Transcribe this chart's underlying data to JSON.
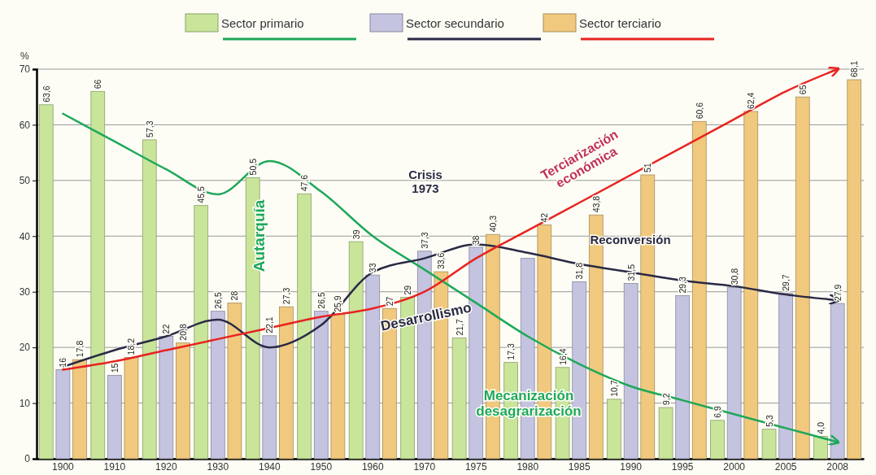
{
  "chart_data": {
    "type": "bar",
    "ylabel": "%",
    "categories": [
      "1900",
      "1910",
      "1920",
      "1930",
      "1940",
      "1950",
      "1960",
      "1970",
      "1975",
      "1980",
      "1985",
      "1990",
      "1995",
      "2000",
      "2005",
      "2008"
    ],
    "ylim": [
      0,
      70
    ],
    "yticks": [
      0,
      10,
      20,
      30,
      40,
      50,
      60,
      70
    ],
    "grid": "y",
    "legend": "top",
    "series": [
      {
        "name": "Sector primario",
        "color": "#c8e59a",
        "values": [
          63.6,
          66,
          57.3,
          45.5,
          50.5,
          47.6,
          39,
          29,
          21.7,
          17.3,
          16.4,
          10.7,
          9.2,
          6.9,
          5.3,
          4.0
        ],
        "value_labels": [
          "63,6",
          "66",
          "57,3",
          "45,5",
          "50,5",
          "47,6",
          "39",
          "29",
          "21,7",
          "17,3",
          "16,4",
          "10,7",
          "9,2",
          "6,9",
          "5,3",
          "4,0"
        ]
      },
      {
        "name": "Sector secundario",
        "color": "#c4c4e0",
        "values": [
          16,
          15,
          22,
          26.5,
          22.1,
          26.5,
          33,
          37.3,
          38,
          36,
          31.8,
          31.5,
          29.3,
          30.8,
          29.7,
          27.9
        ],
        "value_labels": [
          "16",
          "15",
          "22",
          "26,5",
          "22,1",
          "26,5",
          "33",
          "37,3",
          "38",
          null,
          "31,8",
          "31,5",
          "29,3",
          "30,8",
          "29,7",
          "27,9"
        ]
      },
      {
        "name": "Sector terciario",
        "color": "#f0c97e",
        "values": [
          17.8,
          18.2,
          20.8,
          28,
          27.3,
          25.9,
          27,
          33.6,
          40.3,
          42,
          43.8,
          51,
          60.6,
          62.4,
          65,
          68.1
        ],
        "value_labels": [
          "17,8",
          "18,2",
          "20,8",
          "28",
          "27,3",
          "25,9",
          "27",
          "33,6",
          "40,3",
          "42",
          "43,8",
          "51",
          "60,6",
          "62,4",
          "65",
          "68,1"
        ]
      },
      {
        "type": "line",
        "color": "#1fa85a",
        "values": [
          62,
          57,
          52,
          47.5,
          53.5,
          48,
          40,
          34,
          28,
          22,
          17,
          13,
          10.5,
          8,
          5.5,
          3
        ]
      },
      {
        "type": "line",
        "color": "#2a2a45",
        "values": [
          16.5,
          19.5,
          22,
          25,
          20,
          24,
          33.5,
          36,
          38.5,
          37,
          35,
          33.5,
          32,
          31,
          29.5,
          28.5
        ]
      },
      {
        "type": "line",
        "color": "#e8231f",
        "values": [
          16,
          17.5,
          19.5,
          21.5,
          23.5,
          25.5,
          27,
          30,
          36,
          41,
          46,
          51,
          56,
          61,
          66,
          70
        ]
      }
    ],
    "annotations": [
      "Autarquía",
      "Crisis 1973",
      "Desarrollismo",
      "Terciarización económica",
      "Reconversión",
      "Mecanización desagrarización"
    ]
  }
}
